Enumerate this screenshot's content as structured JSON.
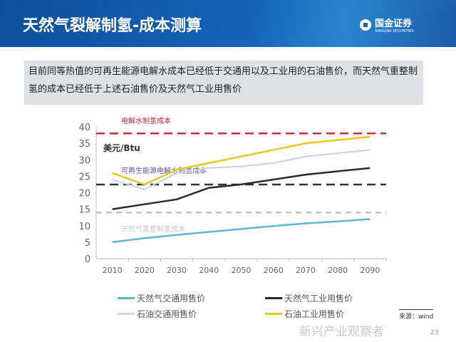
{
  "header": {
    "title": "天然气裂解制氢-成本测算",
    "logo_cn": "国金证券",
    "logo_en": "SINOLINK SECURITIES"
  },
  "summary": "目前同等热值的可再生能源电解水成本已经低于交通用以及工业用的石油售价，而天然气重整制氢的成本已经低于上述石油售价及天然气工业用售价",
  "chart_data": {
    "type": "line",
    "ylabel": "美元/Btu",
    "ylim": [
      0,
      40
    ],
    "yticks": [
      0,
      5,
      10,
      15,
      20,
      25,
      30,
      35,
      40
    ],
    "categories": [
      "2010",
      "2020",
      "2030",
      "2040",
      "2050",
      "2060",
      "2070",
      "2080",
      "2090"
    ],
    "series": [
      {
        "name": "天然气交通用售价",
        "color": "#5bb8d4",
        "values": [
          5,
          6.2,
          7.2,
          8.1,
          9,
          9.9,
          10.7,
          11.3,
          12
        ]
      },
      {
        "name": "天然气工业用售价",
        "color": "#2b2b2b",
        "values": [
          15,
          16.5,
          18,
          21.5,
          22.5,
          24,
          25.5,
          26.5,
          27.5
        ]
      },
      {
        "name": "石油交通用售价",
        "color": "#c9d3da",
        "values": [
          24,
          21,
          26,
          27.5,
          28,
          29,
          31,
          32,
          33
        ]
      },
      {
        "name": "石油工业用售价",
        "color": "#e8c81e",
        "values": [
          26,
          22.5,
          27,
          29,
          31,
          33,
          35,
          36,
          37
        ]
      }
    ],
    "reference_lines": [
      {
        "label": "电解水制氢成本",
        "value": 38,
        "color": "#d22b3a"
      },
      {
        "label": "可再生能源电解水制氢成本",
        "value": 22.5,
        "color": "#333333"
      },
      {
        "label": "天然气重整制氢成本",
        "value": 14,
        "color": "#b8b8b8"
      }
    ]
  },
  "source": "来源：wind",
  "watermark": "新兴产业观察者",
  "page_number": "23"
}
